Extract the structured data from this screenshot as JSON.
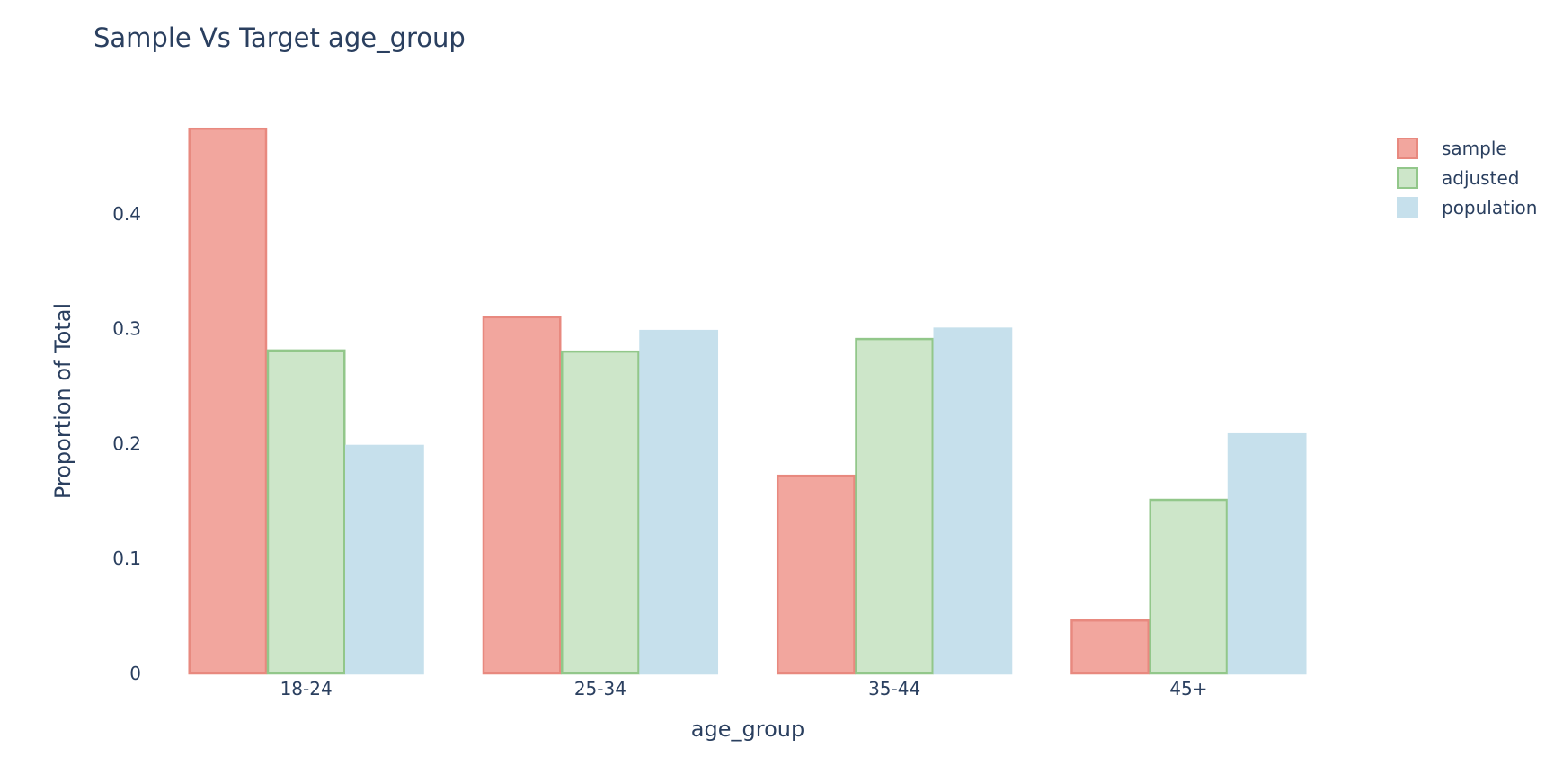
{
  "chart_data": {
    "type": "bar",
    "title": "Sample Vs Target age_group",
    "xlabel": "age_group",
    "ylabel": "Proportion of Total",
    "categories": [
      "18-24",
      "25-34",
      "35-44",
      "45+"
    ],
    "series": [
      {
        "name": "sample",
        "values": [
          0.474,
          0.31,
          0.172,
          0.046
        ],
        "fill": "#f2a69e",
        "stroke": "#e8897f"
      },
      {
        "name": "adjusted",
        "values": [
          0.281,
          0.28,
          0.291,
          0.151
        ],
        "fill": "#cde6c9",
        "stroke": "#92c78a"
      },
      {
        "name": "population",
        "values": [
          0.198,
          0.298,
          0.3,
          0.208
        ],
        "fill": "#c6e0ec",
        "stroke": "#c6e0ec"
      }
    ],
    "ylim": [
      0,
      0.5
    ],
    "yticks": [
      0,
      0.1,
      0.2,
      0.3,
      0.4
    ],
    "ytick_labels": [
      "0",
      "0.1",
      "0.2",
      "0.3",
      "0.4"
    ],
    "grid": false,
    "legend_position": "top-right",
    "colors": {
      "text": "#2a3f5f",
      "background": "#ffffff"
    }
  }
}
